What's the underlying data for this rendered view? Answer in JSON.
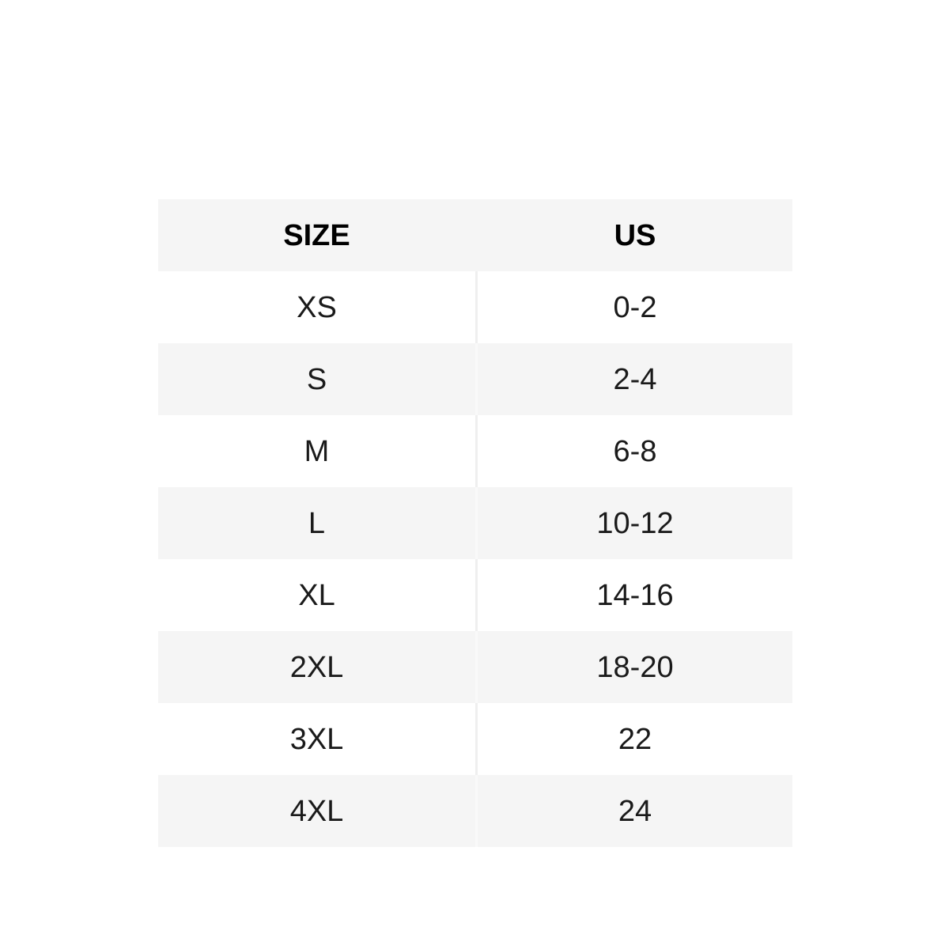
{
  "chart_data": {
    "type": "table",
    "columns": [
      "SIZE",
      "US"
    ],
    "rows": [
      [
        "XS",
        "0-2"
      ],
      [
        "S",
        "2-4"
      ],
      [
        "M",
        "6-8"
      ],
      [
        "L",
        "10-12"
      ],
      [
        "XL",
        "14-16"
      ],
      [
        "2XL",
        "18-20"
      ],
      [
        "3XL",
        "22"
      ],
      [
        "4XL",
        "24"
      ]
    ],
    "layout": {
      "header_position": "top",
      "stripe_pattern": "header-grey, then alternating white/grey"
    }
  },
  "colors": {
    "page_background": "#ffffff",
    "header_background": "#f5f5f5",
    "stripe_row_background": "#f5f5f5",
    "plain_row_background": "#ffffff",
    "header_text": "#000000",
    "cell_text": "#1a1a1a",
    "column_divider": "#efefef"
  }
}
